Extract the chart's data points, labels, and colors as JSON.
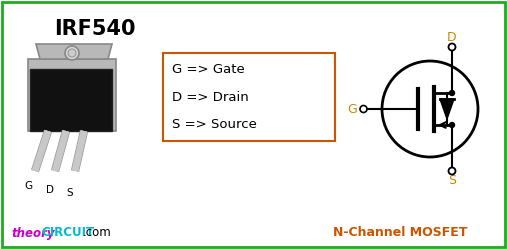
{
  "title": "IRF540",
  "bg_color": "#ffffff",
  "border_color": "#22aa22",
  "box_color": "#cc5500",
  "text_color": "#000000",
  "theory_color": "#cc00cc",
  "circuit_color": "#00bbcc",
  "com_color": "#000000",
  "pin_label_color": "#000000",
  "mosfet_label_color": "#000000",
  "mosfet_terminal_color": "#cc8800",
  "pinout_lines": [
    "G => Gate",
    "D => Drain",
    "S => Source"
  ],
  "bottom_label": "N-Channel MOSFET",
  "website_theory": "theory",
  "website_circuit": "CIRCUIT",
  "website_com": ".com",
  "fig_width": 5.07,
  "fig_height": 2.49,
  "dpi": 100
}
